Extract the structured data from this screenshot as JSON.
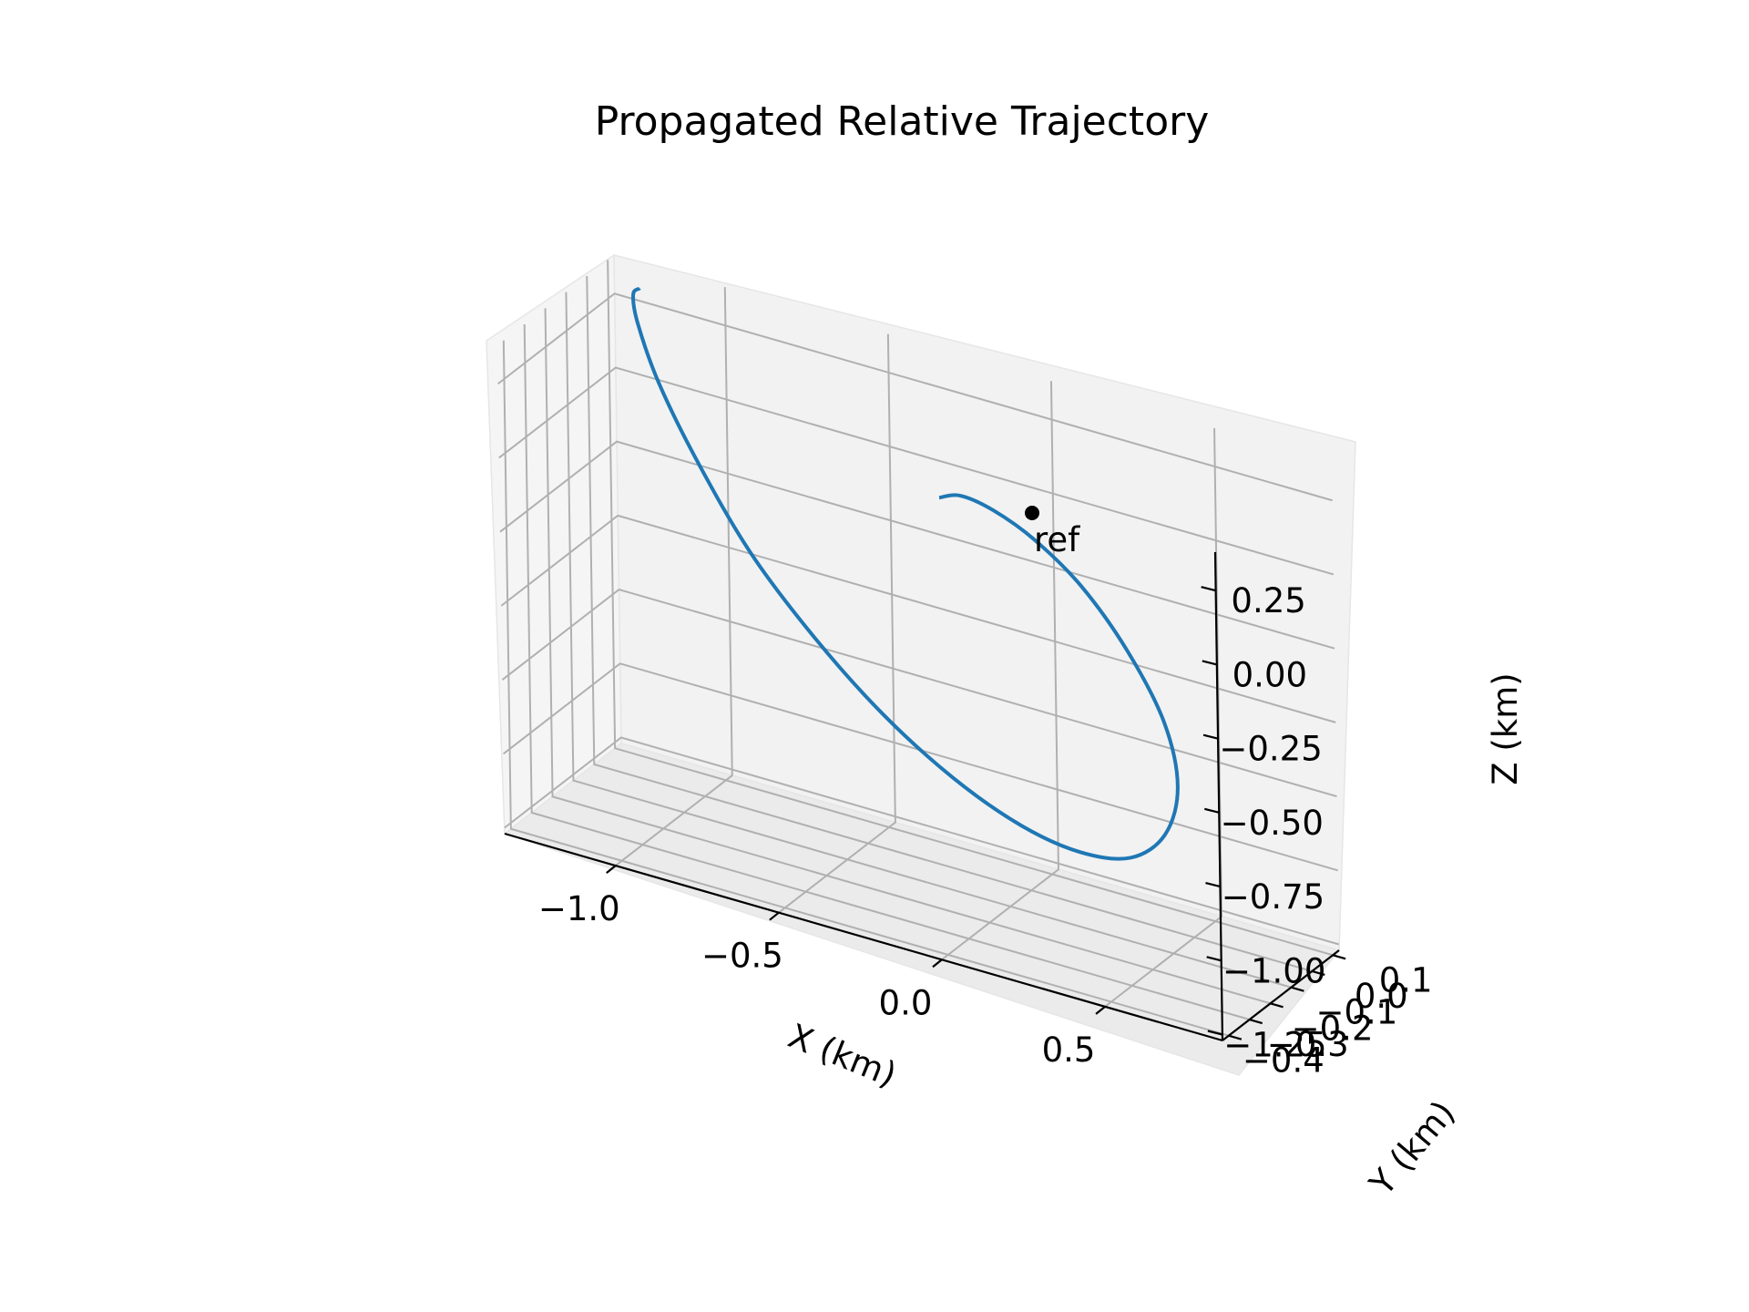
{
  "chart_data": {
    "type": "line3d",
    "title": "Propagated Relative Trajectory",
    "xlabel": "X (km)",
    "ylabel": "Y (km)",
    "zlabel": "Z (km)",
    "xticks": [
      "−1.0",
      "−0.5",
      "0.0",
      "0.5"
    ],
    "yticks": [
      "−0.4",
      "−0.3",
      "−0.2",
      "−0.1",
      "0.0",
      "0.1"
    ],
    "zticks": [
      "−1.25",
      "−1.00",
      "−0.75",
      "−0.50",
      "−0.25",
      "0.00",
      "0.25"
    ],
    "xlim": [
      -1.34,
      0.86
    ],
    "ylim": [
      -0.43,
      0.13
    ],
    "zlim": [
      -1.27,
      0.38
    ],
    "grid": true,
    "series": [
      {
        "color": "#1f77b4",
        "x": [
          0.0,
          0.06,
          0.14,
          0.24,
          0.35,
          0.45,
          0.52,
          0.52,
          0.44,
          0.3,
          0.12,
          -0.08,
          -0.3,
          -0.52,
          -0.72,
          -0.9,
          -1.04,
          -1.13,
          -1.16,
          -1.14,
          -1.1
        ],
        "y": [
          -0.41,
          -0.4,
          -0.37,
          -0.33,
          -0.28,
          -0.22,
          -0.16,
          -0.1,
          -0.04,
          0.01,
          0.05,
          0.08,
          0.1,
          0.11,
          0.1,
          0.08,
          0.05,
          0.01,
          -0.04,
          -0.09,
          -0.12
        ],
        "z": [
          0.28,
          0.3,
          0.26,
          0.17,
          0.02,
          -0.2,
          -0.45,
          -0.7,
          -0.92,
          -1.07,
          -1.13,
          -1.12,
          -1.04,
          -0.9,
          -0.7,
          -0.46,
          -0.18,
          0.08,
          0.3,
          0.43,
          0.48
        ]
      }
    ],
    "annotations": [
      {
        "text": "ref",
        "x": 0.0,
        "y": 0.0,
        "z": 0.0,
        "marker_color": "#000000"
      }
    ]
  }
}
